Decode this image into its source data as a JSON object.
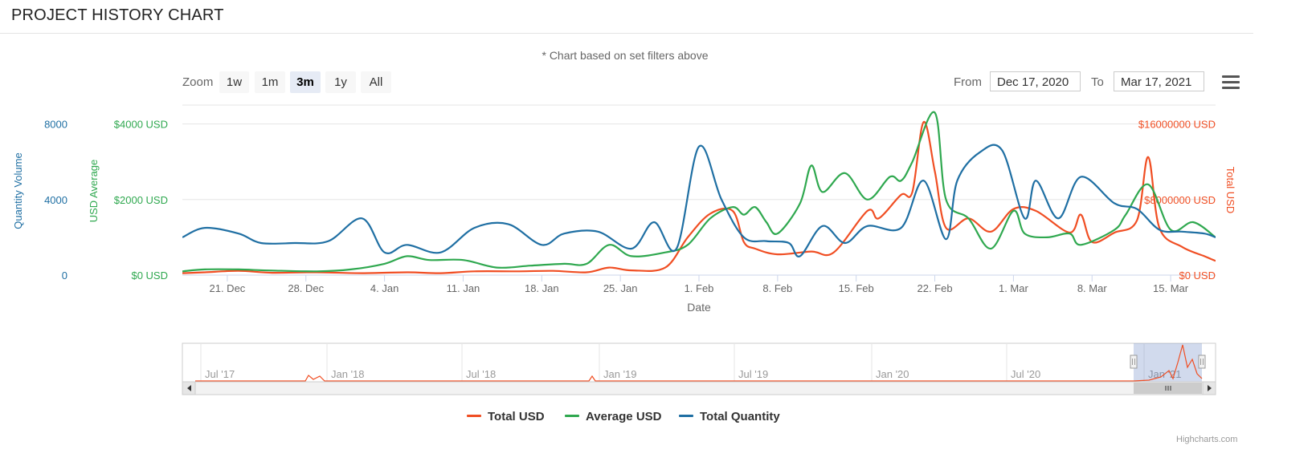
{
  "header": {
    "title": "PROJECT HISTORY CHART"
  },
  "subtitle": "* Chart based on set filters above",
  "toolbar": {
    "zoom_label": "Zoom",
    "zoom_buttons": [
      "1w",
      "1m",
      "3m",
      "1y",
      "All"
    ],
    "active_zoom": "3m",
    "from_label": "From",
    "from_value": "Dec 17, 2020",
    "to_label": "To",
    "to_value": "Mar 17, 2021"
  },
  "credits": "Highcharts.com",
  "chart_data": {
    "type": "line",
    "xlabel": "Date",
    "x_tick_labels": [
      "21. Dec",
      "28. Dec",
      "4. Jan",
      "11. Jan",
      "18. Jan",
      "25. Jan",
      "1. Feb",
      "8. Feb",
      "15. Feb",
      "22. Feb",
      "1. Mar",
      "8. Mar",
      "15. Mar"
    ],
    "x_range": [
      "2020-12-17",
      "2021-03-19"
    ],
    "axes": {
      "quantity": {
        "label": "Quantity Volume",
        "ticks": [
          "0",
          "4000",
          "8000"
        ],
        "range": [
          0,
          9000
        ],
        "color": "#1f6fa3"
      },
      "average": {
        "label": "USD Average",
        "ticks": [
          "$0 USD",
          "$2000 USD",
          "$4000 USD"
        ],
        "range": [
          0,
          4500
        ],
        "color": "#2fa84f"
      },
      "total": {
        "label": "Total USD",
        "ticks": [
          "$0 USD",
          "$8000000 USD",
          "$16000000 USD"
        ],
        "range": [
          0,
          18000000
        ],
        "color": "#f04e23"
      }
    },
    "gridlines": true,
    "legend_position": "bottom-center",
    "series": [
      {
        "name": "Total USD",
        "axis": "total",
        "color": "#f04e23",
        "points": [
          [
            "2020-12-17",
            200000
          ],
          [
            "2020-12-19",
            300000
          ],
          [
            "2020-12-22",
            450000
          ],
          [
            "2020-12-25",
            250000
          ],
          [
            "2020-12-29",
            300000
          ],
          [
            "2021-01-02",
            200000
          ],
          [
            "2021-01-06",
            300000
          ],
          [
            "2021-01-09",
            200000
          ],
          [
            "2021-01-12",
            400000
          ],
          [
            "2021-01-16",
            400000
          ],
          [
            "2021-01-19",
            450000
          ],
          [
            "2021-01-22",
            300000
          ],
          [
            "2021-01-24",
            800000
          ],
          [
            "2021-01-26",
            500000
          ],
          [
            "2021-01-29",
            800000
          ],
          [
            "2021-01-31",
            4000000
          ],
          [
            "2021-02-02",
            6500000
          ],
          [
            "2021-02-04",
            6800000
          ],
          [
            "2021-02-05",
            3500000
          ],
          [
            "2021-02-06",
            2800000
          ],
          [
            "2021-02-08",
            2200000
          ],
          [
            "2021-02-11",
            2500000
          ],
          [
            "2021-02-13",
            2400000
          ],
          [
            "2021-02-16",
            6800000
          ],
          [
            "2021-02-17",
            6000000
          ],
          [
            "2021-02-19",
            8500000
          ],
          [
            "2021-02-20",
            8800000
          ],
          [
            "2021-02-21",
            16200000
          ],
          [
            "2021-02-22",
            11000000
          ],
          [
            "2021-02-23",
            5000000
          ],
          [
            "2021-02-25",
            6000000
          ],
          [
            "2021-02-27",
            4600000
          ],
          [
            "2021-03-01",
            7000000
          ],
          [
            "2021-03-03",
            6800000
          ],
          [
            "2021-03-06",
            4500000
          ],
          [
            "2021-03-07",
            6400000
          ],
          [
            "2021-03-08",
            3500000
          ],
          [
            "2021-03-10",
            4500000
          ],
          [
            "2021-03-12",
            5800000
          ],
          [
            "2021-03-13",
            12500000
          ],
          [
            "2021-03-14",
            5000000
          ],
          [
            "2021-03-16",
            3000000
          ],
          [
            "2021-03-18",
            2000000
          ],
          [
            "2021-03-19",
            1500000
          ]
        ]
      },
      {
        "name": "Average USD",
        "axis": "average",
        "color": "#2fa84f",
        "points": [
          [
            "2020-12-17",
            100
          ],
          [
            "2020-12-19",
            150
          ],
          [
            "2020-12-22",
            150
          ],
          [
            "2020-12-25",
            120
          ],
          [
            "2020-12-29",
            100
          ],
          [
            "2021-01-01",
            150
          ],
          [
            "2021-01-04",
            300
          ],
          [
            "2021-01-06",
            500
          ],
          [
            "2021-01-08",
            400
          ],
          [
            "2021-01-11",
            400
          ],
          [
            "2021-01-14",
            200
          ],
          [
            "2021-01-17",
            250
          ],
          [
            "2021-01-20",
            300
          ],
          [
            "2021-01-22",
            300
          ],
          [
            "2021-01-24",
            800
          ],
          [
            "2021-01-26",
            500
          ],
          [
            "2021-01-29",
            600
          ],
          [
            "2021-01-31",
            800
          ],
          [
            "2021-02-02",
            1500
          ],
          [
            "2021-02-04",
            1800
          ],
          [
            "2021-02-05",
            1600
          ],
          [
            "2021-02-06",
            1800
          ],
          [
            "2021-02-07",
            1400
          ],
          [
            "2021-02-08",
            1100
          ],
          [
            "2021-02-10",
            1900
          ],
          [
            "2021-02-11",
            2900
          ],
          [
            "2021-02-12",
            2200
          ],
          [
            "2021-02-14",
            2700
          ],
          [
            "2021-02-16",
            2000
          ],
          [
            "2021-02-18",
            2600
          ],
          [
            "2021-02-19",
            2500
          ],
          [
            "2021-02-20",
            3000
          ],
          [
            "2021-02-22",
            4300
          ],
          [
            "2021-02-23",
            2000
          ],
          [
            "2021-02-25",
            1500
          ],
          [
            "2021-02-27",
            700
          ],
          [
            "2021-03-01",
            1700
          ],
          [
            "2021-03-02",
            1100
          ],
          [
            "2021-03-04",
            1000
          ],
          [
            "2021-03-06",
            1100
          ],
          [
            "2021-03-07",
            800
          ],
          [
            "2021-03-10",
            1200
          ],
          [
            "2021-03-11",
            1600
          ],
          [
            "2021-03-13",
            2400
          ],
          [
            "2021-03-15",
            1200
          ],
          [
            "2021-03-17",
            1400
          ],
          [
            "2021-03-19",
            1000
          ]
        ]
      },
      {
        "name": "Total Quantity",
        "axis": "quantity",
        "color": "#1f6fa3",
        "points": [
          [
            "2020-12-17",
            2000
          ],
          [
            "2020-12-19",
            2500
          ],
          [
            "2020-12-22",
            2200
          ],
          [
            "2020-12-24",
            1700
          ],
          [
            "2020-12-27",
            1700
          ],
          [
            "2020-12-30",
            1800
          ],
          [
            "2021-01-02",
            3000
          ],
          [
            "2021-01-04",
            1200
          ],
          [
            "2021-01-06",
            1600
          ],
          [
            "2021-01-09",
            1200
          ],
          [
            "2021-01-12",
            2500
          ],
          [
            "2021-01-15",
            2700
          ],
          [
            "2021-01-18",
            1600
          ],
          [
            "2021-01-20",
            2200
          ],
          [
            "2021-01-23",
            2300
          ],
          [
            "2021-01-26",
            1400
          ],
          [
            "2021-01-28",
            2800
          ],
          [
            "2021-01-30",
            1400
          ],
          [
            "2021-02-01",
            6800
          ],
          [
            "2021-02-03",
            4000
          ],
          [
            "2021-02-05",
            2000
          ],
          [
            "2021-02-07",
            1800
          ],
          [
            "2021-02-09",
            1700
          ],
          [
            "2021-02-10",
            1000
          ],
          [
            "2021-02-12",
            2600
          ],
          [
            "2021-02-14",
            1700
          ],
          [
            "2021-02-16",
            2600
          ],
          [
            "2021-02-19",
            2500
          ],
          [
            "2021-02-21",
            5000
          ],
          [
            "2021-02-23",
            1900
          ],
          [
            "2021-02-24",
            5000
          ],
          [
            "2021-02-26",
            6500
          ],
          [
            "2021-02-28",
            6600
          ],
          [
            "2021-03-02",
            3000
          ],
          [
            "2021-03-03",
            5000
          ],
          [
            "2021-03-05",
            3000
          ],
          [
            "2021-03-07",
            5200
          ],
          [
            "2021-03-10",
            3800
          ],
          [
            "2021-03-12",
            3500
          ],
          [
            "2021-03-14",
            2400
          ],
          [
            "2021-03-16",
            2300
          ],
          [
            "2021-03-18",
            2200
          ],
          [
            "2021-03-19",
            2000
          ]
        ]
      }
    ],
    "navigator": {
      "tick_labels": [
        "Jul '17",
        "Jan '18",
        "Jul '18",
        "Jan '19",
        "Jul '19",
        "Jan '20",
        "Jul '20",
        "Jan '21"
      ],
      "selected_range": [
        "2020-12-17",
        "2021-03-17"
      ]
    }
  }
}
